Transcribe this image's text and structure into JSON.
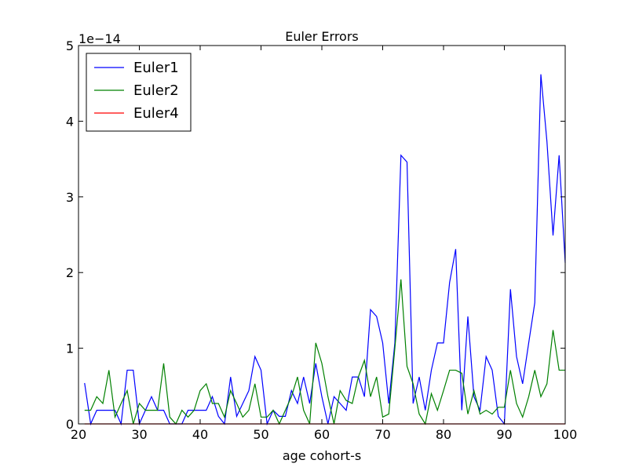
{
  "chart_data": {
    "type": "line",
    "title": "Euler Errors",
    "xlabel": "age cohort-s",
    "y_offset_label": "1e−14",
    "x": [
      21,
      22,
      23,
      24,
      25,
      26,
      27,
      28,
      29,
      30,
      31,
      32,
      33,
      34,
      35,
      36,
      37,
      38,
      39,
      40,
      41,
      42,
      43,
      44,
      45,
      46,
      47,
      48,
      49,
      50,
      51,
      52,
      53,
      54,
      55,
      56,
      57,
      58,
      59,
      60,
      61,
      62,
      63,
      64,
      65,
      66,
      67,
      68,
      69,
      70,
      71,
      72,
      73,
      74,
      75,
      76,
      77,
      78,
      79,
      80,
      81,
      82,
      83,
      84,
      85,
      86,
      87,
      88,
      89,
      90,
      91,
      92,
      93,
      94,
      95,
      96,
      97,
      98,
      99,
      100
    ],
    "series": [
      {
        "name": "Euler1",
        "color": "#0000ff",
        "values": [
          0.54,
          0,
          0.18,
          0.18,
          0.18,
          0.18,
          0,
          0.71,
          0.71,
          0,
          0.18,
          0.36,
          0.18,
          0.18,
          0,
          0,
          0,
          0.18,
          0.18,
          0.18,
          0.18,
          0.36,
          0.1,
          0,
          0.62,
          0.1,
          0.27,
          0.44,
          0.89,
          0.71,
          0,
          0.18,
          0.1,
          0.1,
          0.44,
          0.27,
          0.62,
          0.27,
          0.8,
          0.36,
          0,
          0.36,
          0.27,
          0.18,
          0.62,
          0.62,
          0.36,
          1.51,
          1.42,
          1.07,
          0.27,
          1.07,
          3.55,
          3.46,
          0.27,
          0.62,
          0.18,
          0.71,
          1.07,
          1.07,
          1.87,
          2.31,
          0.18,
          1.42,
          0.36,
          0.18,
          0.89,
          0.71,
          0.1,
          0,
          1.78,
          0.89,
          0.53,
          1.07,
          1.6,
          4.62,
          3.73,
          2.49,
          3.55,
          2.13
        ]
      },
      {
        "name": "Euler2",
        "color": "#008000",
        "values": [
          0.18,
          0.18,
          0.36,
          0.27,
          0.71,
          0.09,
          0.27,
          0.44,
          0,
          0.27,
          0.18,
          0.18,
          0.18,
          0.8,
          0.09,
          0,
          0.18,
          0.09,
          0.18,
          0.44,
          0.53,
          0.27,
          0.27,
          0.09,
          0.44,
          0.27,
          0.09,
          0.18,
          0.53,
          0.09,
          0.09,
          0.18,
          0,
          0.18,
          0.36,
          0.62,
          0.18,
          0,
          1.07,
          0.8,
          0.36,
          0,
          0.44,
          0.31,
          0.27,
          0.62,
          0.84,
          0.36,
          0.62,
          0.09,
          0.13,
          1.0,
          1.91,
          0.76,
          0.53,
          0.13,
          0,
          0.4,
          0.18,
          0.44,
          0.71,
          0.71,
          0.67,
          0.13,
          0.44,
          0.13,
          0.18,
          0.13,
          0.22,
          0.22,
          0.71,
          0.27,
          0.09,
          0.36,
          0.71,
          0.36,
          0.53,
          1.24,
          0.71,
          0.71
        ]
      },
      {
        "name": "Euler4",
        "color": "#ff0000",
        "values": [
          0,
          0,
          0,
          0,
          0,
          0,
          0,
          0,
          0,
          0,
          0,
          0,
          0,
          0,
          0,
          0,
          0,
          0,
          0,
          0,
          0,
          0,
          0,
          0,
          0,
          0,
          0,
          0,
          0,
          0,
          0,
          0,
          0,
          0,
          0,
          0,
          0,
          0,
          0,
          0,
          0,
          0,
          0,
          0,
          0,
          0,
          0,
          0,
          0,
          0,
          0,
          0,
          0,
          0,
          0,
          0,
          0,
          0,
          0,
          0,
          0,
          0,
          0,
          0,
          0,
          0,
          0,
          0,
          0,
          0,
          0,
          0,
          0,
          0,
          0,
          0,
          0,
          0,
          0,
          0
        ]
      }
    ],
    "xlim": [
      20,
      100
    ],
    "xticks": [
      20,
      30,
      40,
      50,
      60,
      70,
      80,
      90,
      100
    ],
    "ylim": [
      0,
      5
    ],
    "yticks": [
      0,
      1,
      2,
      3,
      4,
      5
    ],
    "legend": "upper left",
    "grid": false
  }
}
